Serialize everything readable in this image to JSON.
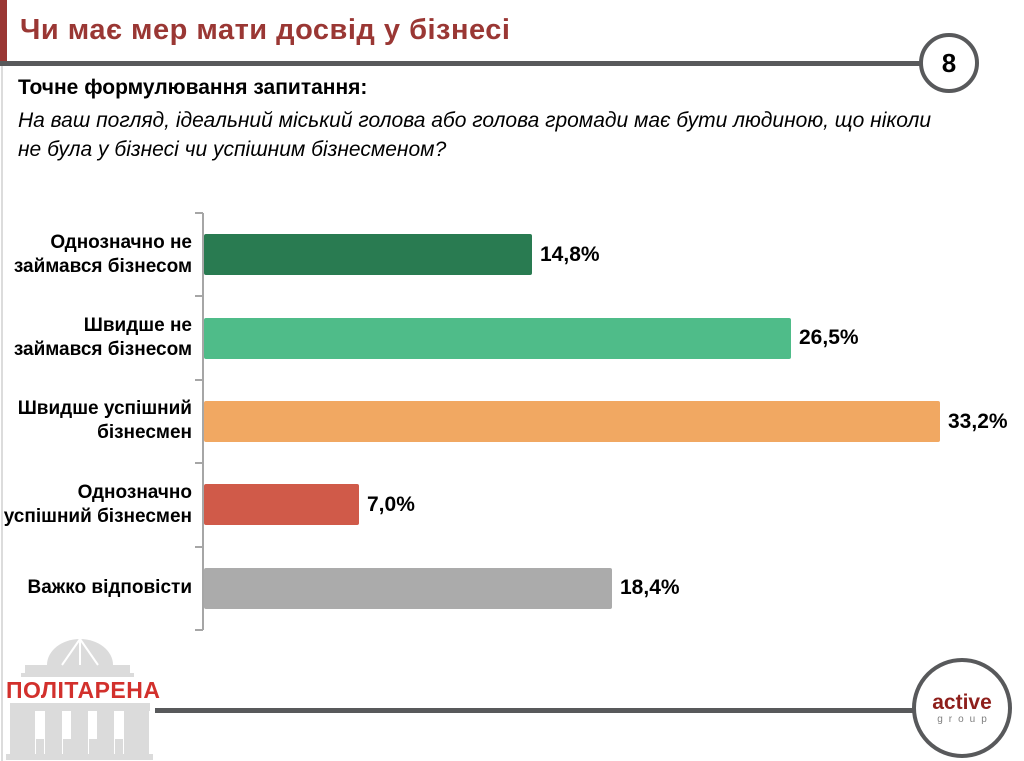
{
  "slide": {
    "title": "Чи має мер мати досвід у бізнесі",
    "page_number": "8",
    "question_heading": "Точне формулювання запитання:",
    "question_lines": [
      "На ваш погляд, ідеальний міський голова або голова громади має бути людиною, що ніколи",
      "не була у бізнесі чи успішним бізнесменом?"
    ]
  },
  "chart_data": {
    "type": "bar",
    "orientation": "horizontal",
    "title": "",
    "xlabel": "",
    "ylabel": "",
    "grid": false,
    "legend": false,
    "xlim": [
      0,
      35
    ],
    "categories": [
      "Однозначно не\nзаймався бізнесом",
      "Швидше не\nзаймався бізнесом",
      "Швидше успішний\nбізнесмен",
      "Однозначно\nуспішний бізнесмен",
      "Важко відповісти"
    ],
    "values": [
      14.8,
      26.5,
      33.2,
      7.0,
      18.4
    ],
    "value_labels": [
      "14,8%",
      "26,5%",
      "33,2%",
      "7,0%",
      "18,4%"
    ],
    "bar_colors": [
      "#297b51",
      "#4fbc89",
      "#f1a862",
      "#d05a49",
      "#ababab"
    ]
  },
  "footer": {
    "politarena_label": "ПОЛІТАРЕНА",
    "active_group": {
      "word1": "active",
      "word2": "group"
    }
  },
  "colors": {
    "title_maroon": "#9a3734",
    "rule_gray": "#58595b",
    "axis_gray": "#a6a6a6",
    "politarena_red": "#d2302c",
    "active_red": "#8e1f1b",
    "logo_gray": "#dbdbdb"
  }
}
